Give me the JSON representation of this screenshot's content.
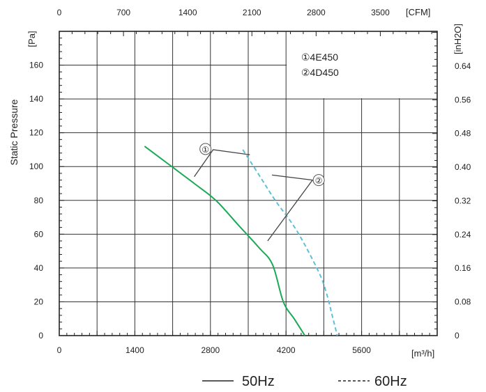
{
  "chart_data": {
    "type": "line",
    "ylabel": "Static Pressure",
    "y_unit_left": "[Pa]",
    "y_unit_right": "[inH2O]",
    "x_unit_bottom": "[m³/h]",
    "x_unit_top": "[CFM]",
    "xlim": [
      0,
      7000
    ],
    "ylim": [
      0,
      180
    ],
    "x_ticks": [
      "0",
      "1400",
      "2800",
      "4200",
      "5600"
    ],
    "x_tick_values": [
      0,
      1400,
      2800,
      4200,
      5600
    ],
    "top_ticks": [
      "0",
      "700",
      "1400",
      "2100",
      "2800",
      "3500"
    ],
    "top_tick_values": [
      0,
      700,
      1400,
      2100,
      2800,
      3500
    ],
    "y_ticks": [
      "0",
      "20",
      "40",
      "60",
      "80",
      "100",
      "120",
      "140",
      "160"
    ],
    "y_tick_values": [
      0,
      20,
      40,
      60,
      80,
      100,
      120,
      140,
      160
    ],
    "right_ticks": [
      "0",
      "0.08",
      "0.16",
      "0.24",
      "0.32",
      "0.40",
      "0.48",
      "0.56",
      "0.64"
    ],
    "right_tick_values": [
      0,
      0.08,
      0.16,
      0.24,
      0.32,
      0.4,
      0.48,
      0.56,
      0.64
    ],
    "grid": true,
    "models": [
      "①4E450",
      "②4D450"
    ],
    "callouts": [
      "①",
      "②"
    ],
    "series": [
      {
        "name": "50Hz",
        "color": "#1aaa55",
        "dash": "solid",
        "x": [
          1580,
          2000,
          2500,
          2900,
          3300,
          3700,
          3950,
          4150,
          4350,
          4550
        ],
        "y": [
          112,
          102,
          90,
          80,
          66,
          52,
          42,
          20,
          10,
          0
        ]
      },
      {
        "name": "60Hz",
        "color": "#5cc0d6",
        "dash": "dashed",
        "x": [
          3400,
          3700,
          4000,
          4400,
          4800,
          4950,
          5070,
          5150
        ],
        "y": [
          110,
          95,
          80,
          62,
          38,
          25,
          10,
          0
        ]
      }
    ],
    "legend": [
      {
        "label": "50Hz",
        "style": "solid"
      },
      {
        "label": "60Hz",
        "style": "dashed"
      }
    ]
  }
}
